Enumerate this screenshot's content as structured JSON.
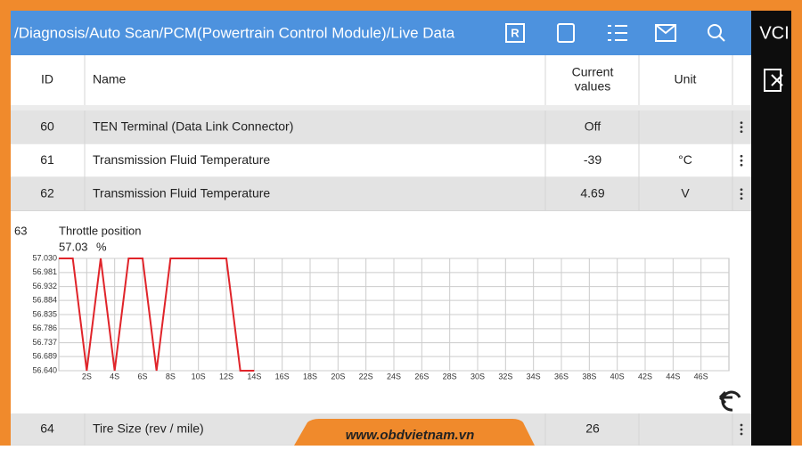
{
  "top_bar": {
    "path": "/Diagnosis/Auto Scan/PCM(Powertrain Control Module)/Live Data",
    "badge": "R"
  },
  "sidebar": {
    "vci": "VCI"
  },
  "table": {
    "header": {
      "id": "ID",
      "name": "Name",
      "value": [
        "Current",
        "values"
      ],
      "unit": "Unit"
    },
    "rows": [
      {
        "id": "60",
        "name": "TEN Terminal (Data Link Connector)",
        "value": "Off"
      },
      {
        "id": "61",
        "name": "Transmission Fluid Temperature",
        "value": "-39",
        "unit": "°C"
      },
      {
        "id": "62",
        "name": "Transmission Fluid Temperature",
        "value": "4.69",
        "unit": "V"
      }
    ]
  },
  "graph": {
    "type": "line",
    "id": "63",
    "name": "Throttle position",
    "current": 57.03,
    "unit": "%",
    "color": "#e0242a",
    "grid": true,
    "x": [
      0,
      1,
      2,
      3,
      4,
      5,
      6,
      7,
      8,
      9,
      10,
      11,
      12,
      13,
      14
    ],
    "values": [
      57.03,
      57.03,
      56.64,
      57.03,
      56.64,
      57.03,
      57.03,
      56.64,
      57.03,
      57.03,
      57.03,
      57.03,
      57.03,
      56.64,
      56.64
    ],
    "xlim": [
      0,
      48
    ],
    "ylim": [
      56.64,
      57.03
    ],
    "xticks": [
      {
        "value": 2,
        "label": "2S"
      },
      {
        "value": 4,
        "label": "4S"
      },
      {
        "value": 6,
        "label": "6S"
      },
      {
        "value": 8,
        "label": "8S"
      },
      {
        "value": 10,
        "label": "10S"
      },
      {
        "value": 12,
        "label": "12S"
      },
      {
        "value": 14,
        "label": "14S"
      },
      {
        "value": 16,
        "label": "16S"
      },
      {
        "value": 18,
        "label": "18S"
      },
      {
        "value": 20,
        "label": "20S"
      },
      {
        "value": 22,
        "label": "22S"
      },
      {
        "value": 24,
        "label": "24S"
      },
      {
        "value": 26,
        "label": "26S"
      },
      {
        "value": 28,
        "label": "28S"
      },
      {
        "value": 30,
        "label": "30S"
      },
      {
        "value": 32,
        "label": "32S"
      },
      {
        "value": 34,
        "label": "34S"
      },
      {
        "value": 36,
        "label": "36S"
      },
      {
        "value": 38,
        "label": "38S"
      },
      {
        "value": 40,
        "label": "40S"
      },
      {
        "value": 42,
        "label": "42S"
      },
      {
        "value": 44,
        "label": "44S"
      },
      {
        "value": 46,
        "label": "46S"
      }
    ],
    "yticks": [
      {
        "value": 57.03,
        "label": "57.030"
      },
      56.981,
      56.932,
      56.884,
      56.835,
      56.786,
      56.737,
      56.689,
      {
        "value": 56.64,
        "label": "56.640"
      }
    ]
  },
  "last_row": {
    "id": "64",
    "name": "Tire Size (rev / mile)",
    "value": "26"
  },
  "footer": {
    "url": "www.obdvietnam.vn"
  }
}
